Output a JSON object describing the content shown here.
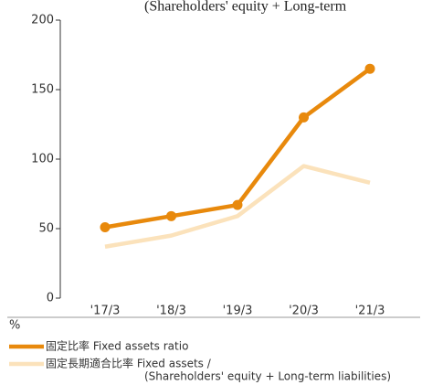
{
  "chart_data": {
    "type": "line",
    "title": "(Shareholders' equity + Long-term",
    "y_unit": "%",
    "categories": [
      "'17/3",
      "'18/3",
      "'19/3",
      "'20/3",
      "'21/3"
    ],
    "series": [
      {
        "name": "固定比率 Fixed assets ratio",
        "color": "#e8890c",
        "markers": true,
        "values": [
          51,
          59,
          67,
          130,
          165
        ]
      },
      {
        "name": "固定長期適合比率 Fixed assets /",
        "name_line2": "(Shareholders' equity + Long-term liabilities)",
        "color": "#fbe2bb",
        "markers": false,
        "values": [
          37,
          45,
          59,
          95,
          83
        ]
      }
    ],
    "ylim": [
      0,
      200
    ],
    "yticks": [
      0,
      50,
      100,
      150,
      200
    ],
    "grid": false
  }
}
